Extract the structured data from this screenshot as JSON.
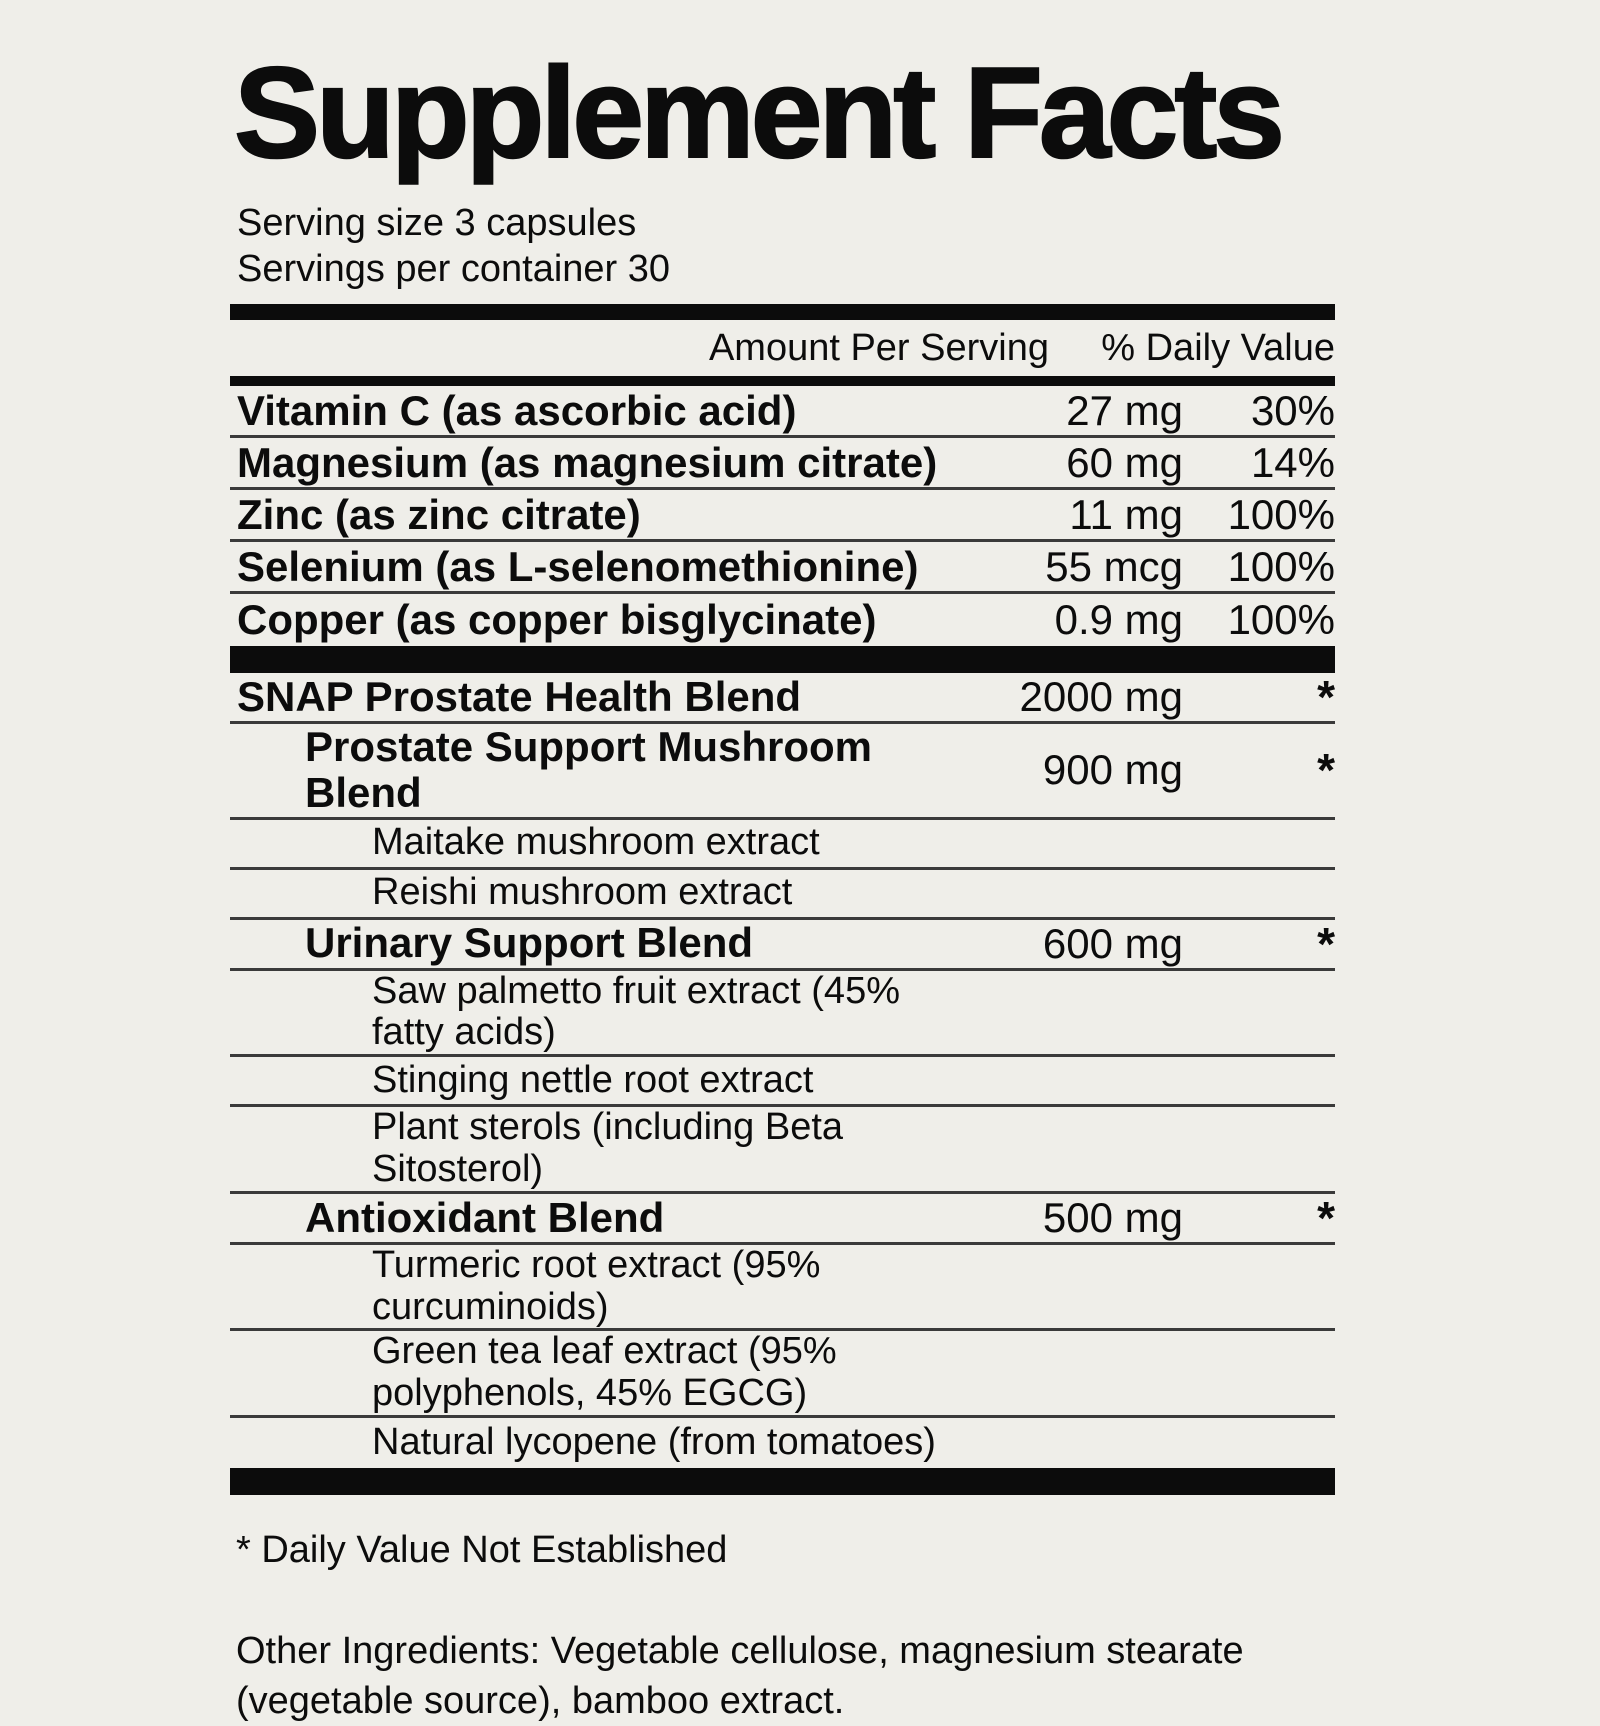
{
  "colors": {
    "background": "#efeee9",
    "ink": "#0c0c0c",
    "rule": "#3a3a3a"
  },
  "label": {
    "title": "Supplement Facts",
    "serving_lines": [
      "Serving size 3 capsules",
      "Servings per container 30"
    ],
    "columns": {
      "amount": "Amount Per Serving",
      "daily_value": "% Daily Value"
    },
    "nutrients": [
      {
        "name": "Vitamin C (as ascorbic acid)",
        "amount": "27 mg",
        "dv": "30%"
      },
      {
        "name": "Magnesium (as magnesium citrate)",
        "amount": "60 mg",
        "dv": "14%"
      },
      {
        "name": "Zinc (as zinc citrate)",
        "amount": "11 mg",
        "dv": "100%"
      },
      {
        "name": "Selenium (as L-selenomethionine)",
        "amount": "55 mcg",
        "dv": "100%"
      },
      {
        "name": "Copper (as copper bisglycinate)",
        "amount": "0.9 mg",
        "dv": "100%"
      }
    ],
    "blend_rows": [
      {
        "name": "SNAP Prostate Health Blend",
        "amount": "2000 mg",
        "dv": "*",
        "style": "bold",
        "indent": 0
      },
      {
        "name": "Prostate Support Mushroom Blend",
        "amount": "900 mg",
        "dv": "*",
        "style": "bold",
        "indent": 1
      },
      {
        "name": "Maitake mushroom extract",
        "amount": "",
        "dv": "",
        "style": "regular",
        "indent": 2
      },
      {
        "name": "Reishi mushroom extract",
        "amount": "",
        "dv": "",
        "style": "regular",
        "indent": 2
      },
      {
        "name": "Urinary Support Blend",
        "amount": "600 mg",
        "dv": "*",
        "style": "bold",
        "indent": 1
      },
      {
        "name": "Saw palmetto fruit extract (45% fatty acids)",
        "amount": "",
        "dv": "",
        "style": "regular",
        "indent": 2
      },
      {
        "name": "Stinging nettle root extract",
        "amount": "",
        "dv": "",
        "style": "regular",
        "indent": 2
      },
      {
        "name": "Plant sterols (including Beta Sitosterol)",
        "amount": "",
        "dv": "",
        "style": "regular",
        "indent": 2
      },
      {
        "name": "Antioxidant Blend",
        "amount": "500 mg",
        "dv": "*",
        "style": "bold",
        "indent": 1
      },
      {
        "name": "Turmeric root extract (95% curcuminoids)",
        "amount": "",
        "dv": "",
        "style": "regular",
        "indent": 2
      },
      {
        "name": "Green tea leaf extract (95% polyphenols, 45% EGCG)",
        "amount": "",
        "dv": "",
        "style": "regular",
        "indent": 2
      },
      {
        "name": "Natural lycopene (from tomatoes)",
        "amount": "",
        "dv": "",
        "style": "regular",
        "indent": 2
      }
    ],
    "footnote": "* Daily Value Not Established",
    "other_ingredients": "Other Ingredients: Vegetable cellulose, magnesium stearate (vegetable source), bamboo extract."
  }
}
